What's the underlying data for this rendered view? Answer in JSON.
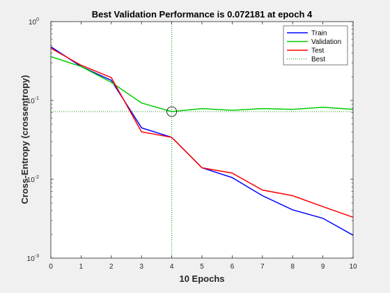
{
  "chart_data": {
    "type": "line",
    "title": "Best Validation Performance is 0.072181 at epoch 4",
    "xlabel": "10 Epochs",
    "ylabel": "Cross-Entropy  (crossentropy)",
    "xlim": [
      0,
      10
    ],
    "ylim": [
      0.001,
      1
    ],
    "yscale": "log",
    "grid": false,
    "legend_position": "top-right",
    "x_ticks": [
      "0",
      "1",
      "2",
      "3",
      "4",
      "5",
      "6",
      "7",
      "8",
      "9",
      "10"
    ],
    "y_ticks": [
      {
        "base": "10",
        "exp": "0",
        "value": 1
      },
      {
        "base": "10",
        "exp": "-1",
        "value": 0.1
      },
      {
        "base": "10",
        "exp": "-2",
        "value": 0.01
      },
      {
        "base": "10",
        "exp": "-3",
        "value": 0.001
      }
    ],
    "x": [
      0,
      1,
      2,
      3,
      4,
      5,
      6,
      7,
      8,
      9,
      10
    ],
    "series": [
      {
        "name": "Train",
        "color": "#0000ff",
        "style": "solid",
        "values": [
          0.48,
          0.27,
          0.18,
          0.045,
          0.034,
          0.014,
          0.0105,
          0.0062,
          0.0041,
          0.0032,
          0.00195
        ]
      },
      {
        "name": "Validation",
        "color": "#00cc00",
        "style": "solid",
        "values": [
          0.36,
          0.27,
          0.17,
          0.093,
          0.0722,
          0.079,
          0.075,
          0.079,
          0.077,
          0.082,
          0.077
        ]
      },
      {
        "name": "Test",
        "color": "#ff0000",
        "style": "solid",
        "values": [
          0.46,
          0.28,
          0.195,
          0.04,
          0.034,
          0.014,
          0.012,
          0.0073,
          0.0062,
          0.0045,
          0.0033
        ]
      },
      {
        "name": "Best",
        "color": "#009900",
        "style": "dotted"
      }
    ],
    "best": {
      "epoch": 4,
      "value": 0.072181
    }
  }
}
